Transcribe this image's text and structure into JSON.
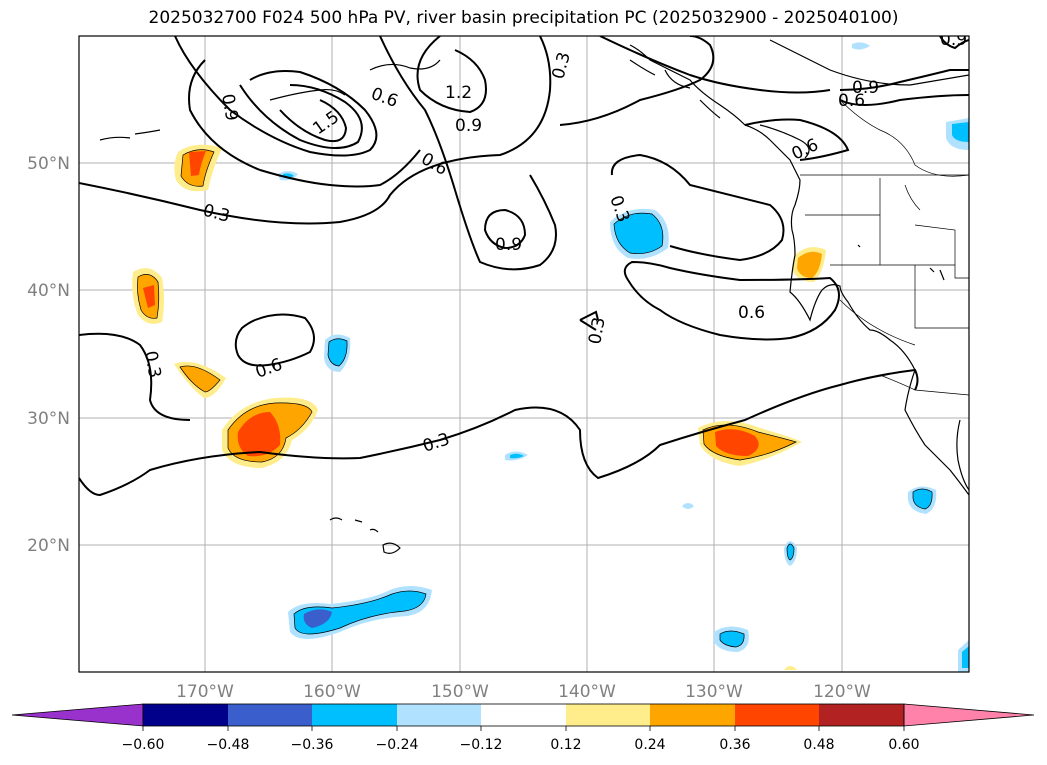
{
  "title": "2025032700 F024 500 hPa PV, river basin precipitation PC (2025032900 - 2025040100)",
  "map": {
    "lat_labels": [
      "50°N",
      "40°N",
      "30°N",
      "20°N"
    ],
    "lon_labels": [
      "170°W",
      "160°W",
      "150°W",
      "140°W",
      "130°W",
      "120°W"
    ],
    "contour_labels": [
      "0.9",
      "1.5",
      "1.2",
      "0.6",
      "0.3",
      "0.9",
      "0.6",
      "0.3",
      "0.9",
      "0.6",
      "0.9",
      "0.6",
      "0.3",
      "0.6",
      "0.3",
      "0.3",
      "0.6",
      "0.3",
      "0.9"
    ],
    "pv_contour_color": "#000000",
    "graticule_color": "#b0b0b0"
  },
  "colorbar": {
    "ticks": [
      "−0.60",
      "−0.48",
      "−0.36",
      "−0.24",
      "−0.12",
      "0.12",
      "0.24",
      "0.36",
      "0.48",
      "0.60"
    ],
    "colors": [
      "#9932cc",
      "#00008b",
      "#3a5fcd",
      "#00bfff",
      "#b0e2ff",
      "#ffffff",
      "#ffec8b",
      "#ffa500",
      "#ff4500",
      "#b22222",
      "#ff82ab"
    ]
  }
}
